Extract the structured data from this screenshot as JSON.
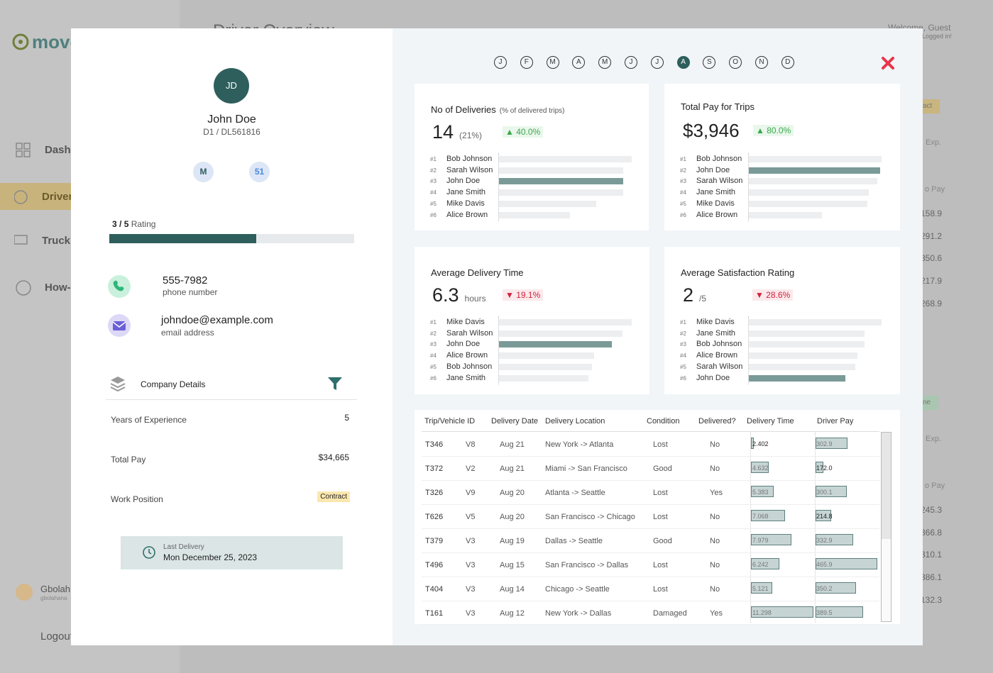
{
  "background": {
    "logo": "move",
    "nav": [
      "Dash",
      "Driver",
      "Truck",
      "How-"
    ],
    "user": "Gbolah",
    "user_handle": "gbolahana",
    "logout": "Logout",
    "page_title": "Driver Overview",
    "welcome": "Welcome, Guest",
    "status": "Logged in!",
    "fragments": [
      "act",
      "Exp.",
      "o Pay",
      "ne",
      "Exp.",
      "o Pay"
    ],
    "values_top": [
      158.9,
      291.2,
      350.6,
      217.9,
      268.9
    ],
    "values_bottom": [
      245.3,
      366.8,
      310.1,
      386.1,
      132.3
    ]
  },
  "driver": {
    "initials": "JD",
    "name": "John Doe",
    "id": "D1 / DL561816",
    "badges": [
      "M",
      51
    ],
    "rating": {
      "score": 3,
      "max": 5,
      "label": "Rating"
    },
    "phone": "555-7982",
    "phone_label": "phone number",
    "email": "johndoe@example.com",
    "email_label": "email address",
    "company_title": "Company Details",
    "details": [
      {
        "label": "Years of Experience",
        "value": 5
      },
      {
        "label": "Total Pay",
        "value": "$34,665"
      },
      {
        "label": "Work Position",
        "value": "Contract"
      }
    ],
    "last_delivery": {
      "label": "Last Delivery",
      "date": "Mon December 25, 2023"
    }
  },
  "months": [
    "J",
    "F",
    "M",
    "A",
    "M",
    "J",
    "J",
    "A",
    "S",
    "O",
    "N",
    "D"
  ],
  "selected_month": 7,
  "cards": [
    {
      "title": "No of Deliveries",
      "subtitle": "(% of delivered trips)",
      "value": 14,
      "unit": "(21%)",
      "change": "▲ 40.0%",
      "trend": "up",
      "highlight": "John Doe",
      "ranking": [
        {
          "rank": "#1",
          "name": "Bob Johnson",
          "value": 15
        },
        {
          "rank": "#2",
          "name": "Sarah Wilson",
          "value": 14
        },
        {
          "rank": "#3",
          "name": "John Doe",
          "value": 14
        },
        {
          "rank": "#4",
          "name": "Jane Smith",
          "value": 14
        },
        {
          "rank": "#5",
          "name": "Mike Davis",
          "value": 11
        },
        {
          "rank": "#6",
          "name": "Alice Brown",
          "value": 8
        }
      ]
    },
    {
      "title": "Total Pay for Trips",
      "value": "$3,946",
      "change": "▲ 80.0%",
      "trend": "up",
      "highlight": "John Doe",
      "ranking": [
        {
          "rank": "#1",
          "name": "Bob Johnson",
          "value": 3990
        },
        {
          "rank": "#2",
          "name": "John Doe",
          "value": 3946
        },
        {
          "rank": "#3",
          "name": "Sarah Wilson",
          "value": 3860
        },
        {
          "rank": "#4",
          "name": "Jane Smith",
          "value": 3600
        },
        {
          "rank": "#5",
          "name": "Mike Davis",
          "value": 3560
        },
        {
          "rank": "#6",
          "name": "Alice Brown",
          "value": 2200
        }
      ]
    },
    {
      "title": "Average Delivery Time",
      "value": 6.3,
      "unit": "hours",
      "change": "▼ 19.1%",
      "trend": "down",
      "highlight": "John Doe",
      "ranking": [
        {
          "rank": "#1",
          "name": "Mike Davis",
          "value": 7.4
        },
        {
          "rank": "#2",
          "name": "Sarah Wilson",
          "value": 6.9
        },
        {
          "rank": "#3",
          "name": "John Doe",
          "value": 6.3
        },
        {
          "rank": "#4",
          "name": "Alice Brown",
          "value": 5.3
        },
        {
          "rank": "#5",
          "name": "Bob Johnson",
          "value": 5.2
        },
        {
          "rank": "#6",
          "name": "Jane Smith",
          "value": 5.0
        }
      ]
    },
    {
      "title": "Average Satisfaction Rating",
      "value": 2,
      "unit": "/5",
      "change": "▼ 28.6%",
      "trend": "down",
      "highlight": "John Doe",
      "ranking": [
        {
          "rank": "#1",
          "name": "Mike Davis",
          "value": 2.75
        },
        {
          "rank": "#2",
          "name": "Jane Smith",
          "value": 2.4
        },
        {
          "rank": "#3",
          "name": "Bob Johnson",
          "value": 2.4
        },
        {
          "rank": "#4",
          "name": "Alice Brown",
          "value": 2.25
        },
        {
          "rank": "#5",
          "name": "Sarah Wilson",
          "value": 2.2
        },
        {
          "rank": "#6",
          "name": "John Doe",
          "value": 2
        }
      ]
    }
  ],
  "table": {
    "headers": [
      "Trip/Vehicle ID",
      "Delivery Date",
      "Delivery Location",
      "Condition",
      "Delivered?",
      "Delivery Time",
      "Driver Pay"
    ],
    "rows": [
      {
        "trip": "T346",
        "vehicle": "V8",
        "date": "Aug 21",
        "location": "New York -> Atlanta",
        "condition": "Lost",
        "delivered": "No",
        "time": 2.402,
        "pay": 302.9
      },
      {
        "trip": "T372",
        "vehicle": "V2",
        "date": "Aug 21",
        "location": "Miami -> San Francisco",
        "condition": "Good",
        "delivered": "No",
        "time": 4.632,
        "pay": 172,
        "pay_label": "172.0"
      },
      {
        "trip": "T326",
        "vehicle": "V9",
        "date": "Aug 20",
        "location": "Atlanta -> Seattle",
        "condition": "Lost",
        "delivered": "Yes",
        "time": 5.383,
        "pay": 300.1
      },
      {
        "trip": "T626",
        "vehicle": "V5",
        "date": "Aug 20",
        "location": "San Francisco -> Chicago",
        "condition": "Lost",
        "delivered": "No",
        "time": 7.068,
        "pay": 214.8
      },
      {
        "trip": "T379",
        "vehicle": "V3",
        "date": "Aug 19",
        "location": "Dallas -> Seattle",
        "condition": "Good",
        "delivered": "No",
        "time": 7.979,
        "pay": 332.9
      },
      {
        "trip": "T496",
        "vehicle": "V3",
        "date": "Aug 15",
        "location": "San Francisco -> Dallas",
        "condition": "Lost",
        "delivered": "No",
        "time": 6.242,
        "pay": 465.9
      },
      {
        "trip": "T404",
        "vehicle": "V3",
        "date": "Aug 14",
        "location": "Chicago -> Seattle",
        "condition": "Lost",
        "delivered": "No",
        "time": 5.121,
        "pay": 350.2
      },
      {
        "trip": "T161",
        "vehicle": "V3",
        "date": "Aug 12",
        "location": "New York -> Dallas",
        "condition": "Damaged",
        "delivered": "Yes",
        "time": 11.298,
        "pay": 389.5
      }
    ]
  }
}
